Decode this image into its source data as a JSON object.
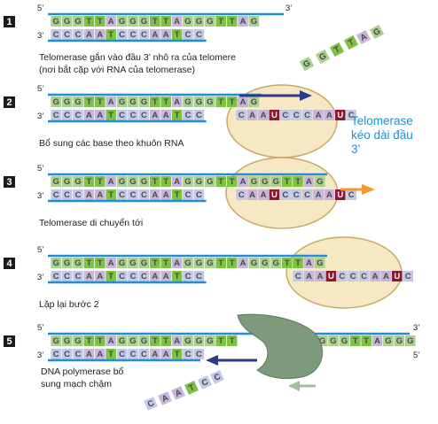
{
  "colors": {
    "G": "#a9d18e",
    "T": "#7ec243",
    "A": "#c7b6dc",
    "C": "#c3c8e6",
    "U": "#8b1a30",
    "backbone": "#1f8fd1",
    "enzyme_fill": "#f6e8c3",
    "enzyme_stroke": "#c9a867",
    "polymerase": "#7d9a7d",
    "arrow_blue": "#2d3a8c",
    "arrow_orange": "#f39a2d",
    "arrow_green": "#9fc09f",
    "label_blue": "#1f8fd1"
  },
  "steps": [
    {
      "number": "1",
      "top": "GGGTTAGGGTTAGGGTTAG",
      "bottom": "CCCAATCCCAATCC",
      "caption": [
        "Telomerase gắn vào đầu 3’ nhô ra của telomere",
        "(nơi bắt cặp với RNA của telomerase)"
      ],
      "floating": "GGTTAG"
    },
    {
      "number": "2",
      "top": "GGGTTAGGGTTAGGGTTAG",
      "bottom": "CCCAATCCCAATCC",
      "rna": "CAAUCCCAAUC",
      "caption": [
        "Bổ sung các base theo khuôn RNA"
      ]
    },
    {
      "number": "3",
      "top": "GGGTTAGGGTTAGGGTTAGGGTTAG",
      "bottom": "CCCAATCCCAATCC",
      "rna": "CAAUCCCAAUC",
      "caption": [
        "Telomerase di chuyển tới"
      ]
    },
    {
      "number": "4",
      "top": "GGGTTAGGGTTAGGGTTAGGGTTAG",
      "bottom": "CCCAATCCCAATCC",
      "rna": "CAAUCCCAAUC",
      "caption": [
        "Lặp lại bước 2"
      ]
    },
    {
      "number": "5",
      "top_left": "GGGTTAGGGTTAGGGTT",
      "top_right": "AGGGTTAGGG",
      "bottom": "CCCAATCCCAATCC",
      "caption": [
        "DNA polymerase bổ",
        "sung mạch chậm"
      ],
      "floating": "CAATCC"
    }
  ],
  "primes": {
    "five": "5’",
    "three": "3’"
  },
  "side_label": [
    "Telomerase",
    "kéo dài đầu",
    "3’"
  ]
}
